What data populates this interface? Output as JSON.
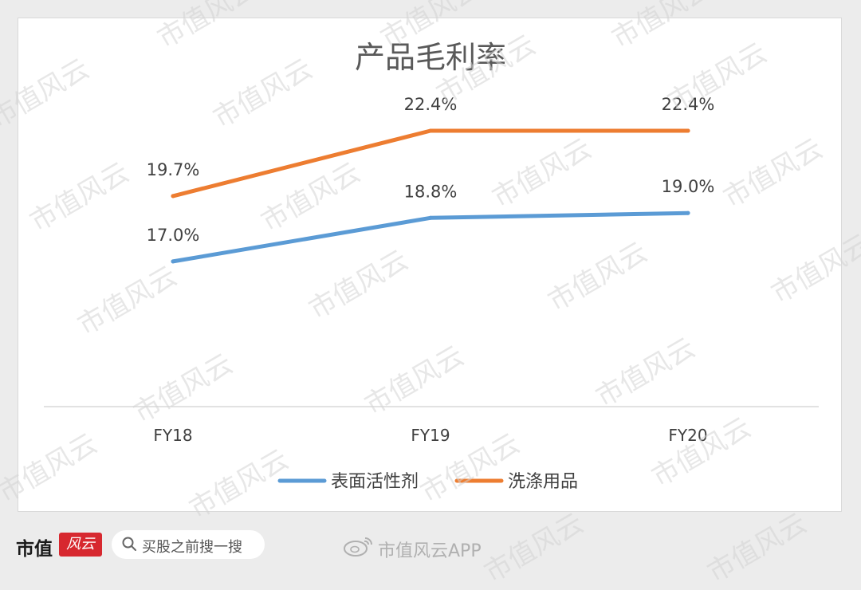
{
  "chart_data": {
    "type": "line",
    "title": "产品毛利率",
    "categories": [
      "FY18",
      "FY19",
      "FY20"
    ],
    "series": [
      {
        "name": "表面活性剂",
        "color": "#5b9bd5",
        "values": [
          17.0,
          18.8,
          19.0
        ],
        "labels": [
          "17.0%",
          "18.8%",
          "19.0%"
        ]
      },
      {
        "name": "洗涤用品",
        "color": "#ed7d31",
        "values": [
          19.7,
          22.4,
          22.4
        ],
        "labels": [
          "19.7%",
          "22.4%",
          "22.4%"
        ]
      }
    ],
    "ylim": [
      11.0,
      24.0
    ],
    "grid": false,
    "legend_position": "bottom"
  },
  "watermark": "市值风云",
  "footer": {
    "brand": "市值",
    "brand_badge": "风云",
    "search_placeholder": "买股之前搜一搜",
    "app_label": "市值风云APP"
  }
}
